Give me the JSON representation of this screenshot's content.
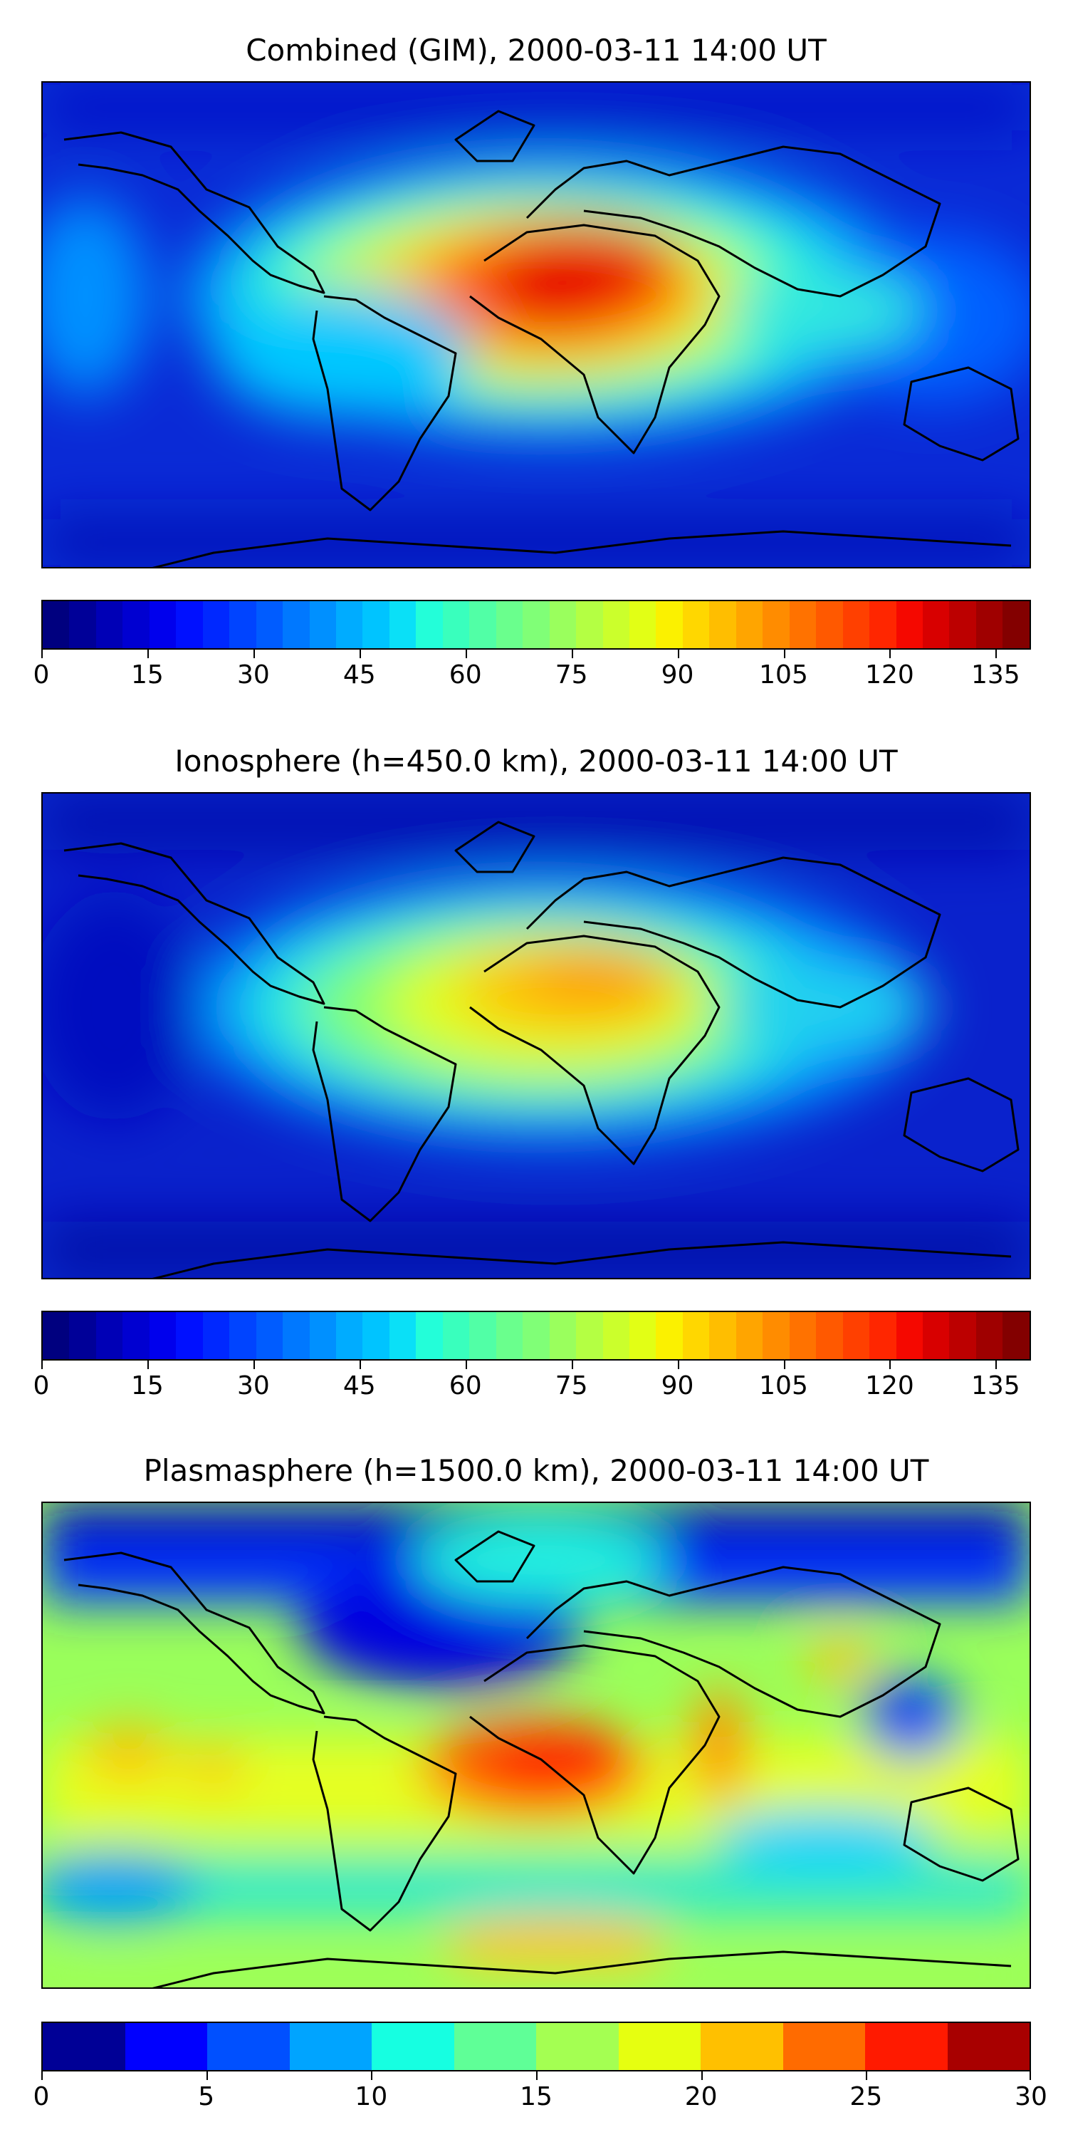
{
  "panels": [
    {
      "title": "Combined (GIM), 2000-03-11 14:00 UT",
      "colorbar": {
        "min": 0,
        "max": 140,
        "ticks": [
          "0",
          "15",
          "30",
          "45",
          "60",
          "75",
          "90",
          "105",
          "120",
          "135"
        ],
        "tick_values": [
          0,
          15,
          30,
          45,
          60,
          75,
          90,
          105,
          120,
          135
        ],
        "colors": [
          "#00007f",
          "#000098",
          "#0000b6",
          "#0000d1",
          "#0000ed",
          "#0010ff",
          "#0028ff",
          "#0044ff",
          "#005cff",
          "#0078ff",
          "#0090ff",
          "#00acff",
          "#00c4ff",
          "#0ae0f7",
          "#23fed9",
          "#39ffbd",
          "#51ffa6",
          "#6aff8d",
          "#80ff77",
          "#9aff5d",
          "#b4ff43",
          "#cbff2c",
          "#e2ff15",
          "#fbf100",
          "#ffd700",
          "#ffbe00",
          "#ffa500",
          "#ff8c00",
          "#ff7200",
          "#ff5900",
          "#ff4000",
          "#ff2600",
          "#f50800",
          "#d80000",
          "#bc0000",
          "#9f0000",
          "#830000"
        ]
      }
    },
    {
      "title": "Ionosphere  (h=450.0 km), 2000-03-11 14:00 UT",
      "colorbar": {
        "min": 0,
        "max": 140,
        "ticks": [
          "0",
          "15",
          "30",
          "45",
          "60",
          "75",
          "90",
          "105",
          "120",
          "135"
        ],
        "tick_values": [
          0,
          15,
          30,
          45,
          60,
          75,
          90,
          105,
          120,
          135
        ],
        "colors": [
          "#00007f",
          "#000098",
          "#0000b6",
          "#0000d1",
          "#0000ed",
          "#0010ff",
          "#0028ff",
          "#0044ff",
          "#005cff",
          "#0078ff",
          "#0090ff",
          "#00acff",
          "#00c4ff",
          "#0ae0f7",
          "#23fed9",
          "#39ffbd",
          "#51ffa6",
          "#6aff8d",
          "#80ff77",
          "#9aff5d",
          "#b4ff43",
          "#cbff2c",
          "#e2ff15",
          "#fbf100",
          "#ffd700",
          "#ffbe00",
          "#ffa500",
          "#ff8c00",
          "#ff7200",
          "#ff5900",
          "#ff4000",
          "#ff2600",
          "#f50800",
          "#d80000",
          "#bc0000",
          "#9f0000",
          "#830000"
        ]
      }
    },
    {
      "title": "Plasmasphere (h=1500.0 km), 2000-03-11 14:00 UT",
      "colorbar": {
        "min": 0,
        "max": 30,
        "ticks": [
          "0",
          "5",
          "10",
          "15",
          "20",
          "25",
          "30"
        ],
        "tick_values": [
          0,
          5,
          10,
          15,
          20,
          25,
          30
        ],
        "colors": [
          "#000096",
          "#0000ff",
          "#0050ff",
          "#00a4ff",
          "#16ffe1",
          "#5fff97",
          "#a4ff52",
          "#e6ff10",
          "#ffc000",
          "#ff6b00",
          "#ff1a00",
          "#a80000"
        ]
      }
    }
  ]
}
